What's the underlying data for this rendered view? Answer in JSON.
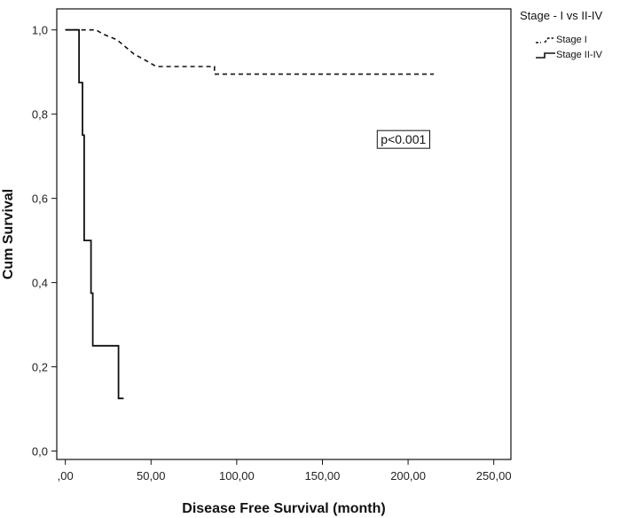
{
  "chart_data": {
    "type": "line",
    "step": true,
    "xlabel": "Disease Free Survival (month)",
    "ylabel": "Cum Survival",
    "xlim": [
      -5,
      260
    ],
    "ylim": [
      -0.02,
      1.05
    ],
    "x_ticks": [
      0,
      50,
      100,
      150,
      200,
      250
    ],
    "x_tick_labels": [
      ",00",
      "50,00",
      "100,00",
      "150,00",
      "200,00",
      "250,00"
    ],
    "y_ticks": [
      0.0,
      0.2,
      0.4,
      0.6,
      0.8,
      1.0
    ],
    "y_tick_labels": [
      "0,0",
      "0,2",
      "0,4",
      "0,6",
      "0,8",
      "1,0"
    ],
    "grid": false,
    "legend": {
      "title": "Stage - I vs II-IV",
      "placement": "right-outside-top"
    },
    "series": [
      {
        "name": "Stage I",
        "line_style": "dashed",
        "color": "#111111",
        "points": [
          [
            0,
            1.0
          ],
          [
            18,
            1.0
          ],
          [
            22,
            0.99
          ],
          [
            30,
            0.977
          ],
          [
            35,
            0.96
          ],
          [
            40,
            0.943
          ],
          [
            48,
            0.925
          ],
          [
            53,
            0.913
          ],
          [
            87,
            0.913
          ],
          [
            87,
            0.895
          ],
          [
            215,
            0.895
          ]
        ]
      },
      {
        "name": "Stage II-IV",
        "line_style": "solid",
        "color": "#111111",
        "points": [
          [
            0,
            1.0
          ],
          [
            8,
            1.0
          ],
          [
            8,
            0.875
          ],
          [
            10,
            0.875
          ],
          [
            10,
            0.75
          ],
          [
            11,
            0.75
          ],
          [
            11,
            0.5
          ],
          [
            15,
            0.5
          ],
          [
            15,
            0.375
          ],
          [
            16,
            0.375
          ],
          [
            16,
            0.25
          ],
          [
            31,
            0.25
          ],
          [
            31,
            0.125
          ],
          [
            34,
            0.125
          ]
        ]
      }
    ],
    "annotations": [
      {
        "text": "p<0.001",
        "x": 182,
        "y": 0.74,
        "boxed": true
      }
    ]
  }
}
